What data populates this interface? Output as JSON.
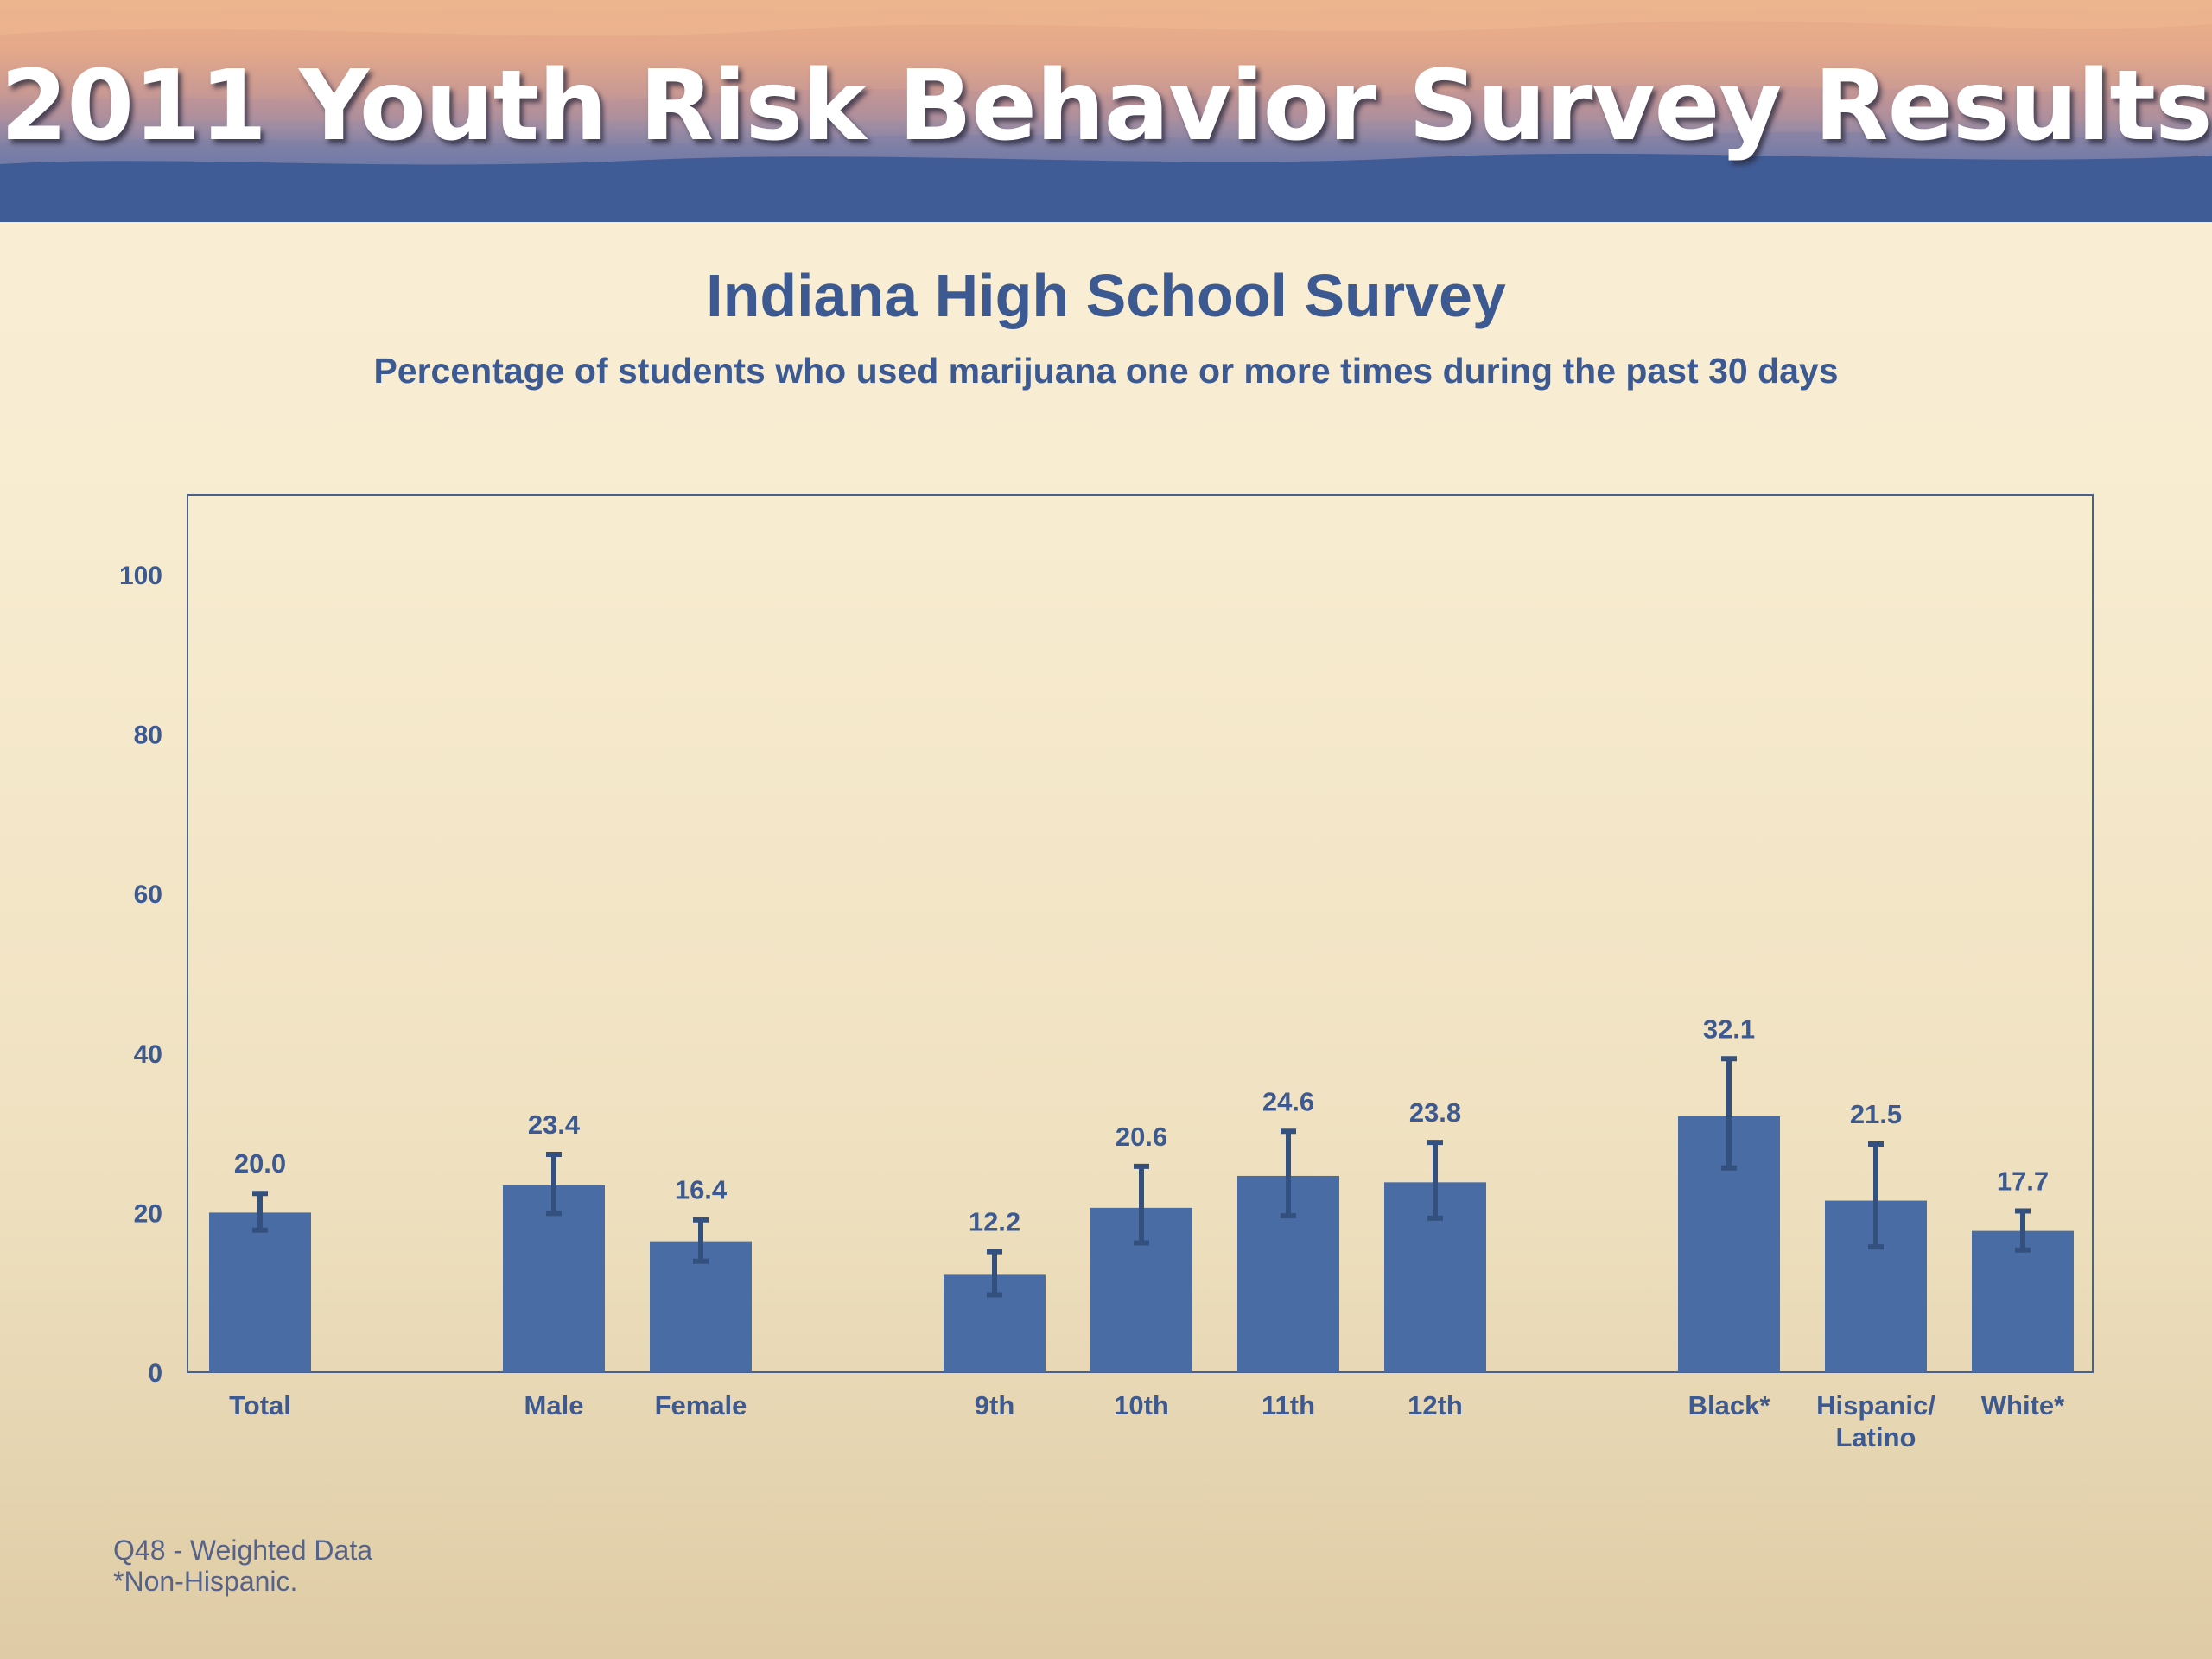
{
  "header": {
    "title": "2011 Youth Risk Behavior Survey Results"
  },
  "colors": {
    "bar": "#4a6ca5",
    "text": "#3c5a91",
    "axis": "#4a5f8c"
  },
  "chart_data": {
    "type": "bar",
    "title": "Indiana High School Survey",
    "subtitle": "Percentage of students who used marijuana one or more times during the past 30 days",
    "xlabel": "",
    "ylabel": "",
    "ylim": [
      0,
      110
    ],
    "yticks": [
      "0",
      "20",
      "40",
      "60",
      "80",
      "100"
    ],
    "grid": false,
    "categories": [
      "Total",
      "Male",
      "Female",
      "9th",
      "10th",
      "11th",
      "12th",
      "Black*",
      "Hispanic/ Latino",
      "White*"
    ],
    "category_lines": [
      [
        "Total"
      ],
      [
        "Male"
      ],
      [
        "Female"
      ],
      [
        "9th"
      ],
      [
        "10th"
      ],
      [
        "11th"
      ],
      [
        "12th"
      ],
      [
        "Black*"
      ],
      [
        "Hispanic/",
        "Latino"
      ],
      [
        "White*"
      ]
    ],
    "values": [
      20.0,
      23.4,
      16.4,
      12.2,
      20.6,
      24.6,
      23.8,
      32.1,
      21.5,
      17.7
    ],
    "value_labels": [
      "20.0",
      "23.4",
      "16.4",
      "12.2",
      "20.6",
      "24.6",
      "23.8",
      "32.1",
      "21.5",
      "17.7"
    ],
    "error_bars": [
      {
        "low": 17.8,
        "high": 22.4
      },
      {
        "low": 19.9,
        "high": 27.3
      },
      {
        "low": 13.9,
        "high": 19.1
      },
      {
        "low": 9.7,
        "high": 15.1
      },
      {
        "low": 16.2,
        "high": 25.8
      },
      {
        "low": 19.6,
        "high": 30.2
      },
      {
        "low": 19.3,
        "high": 28.8
      },
      {
        "low": 25.6,
        "high": 39.3
      },
      {
        "low": 15.7,
        "high": 28.6
      },
      {
        "low": 15.3,
        "high": 20.2
      }
    ]
  },
  "footnotes": [
    "Q48 - Weighted Data",
    "*Non-Hispanic."
  ]
}
